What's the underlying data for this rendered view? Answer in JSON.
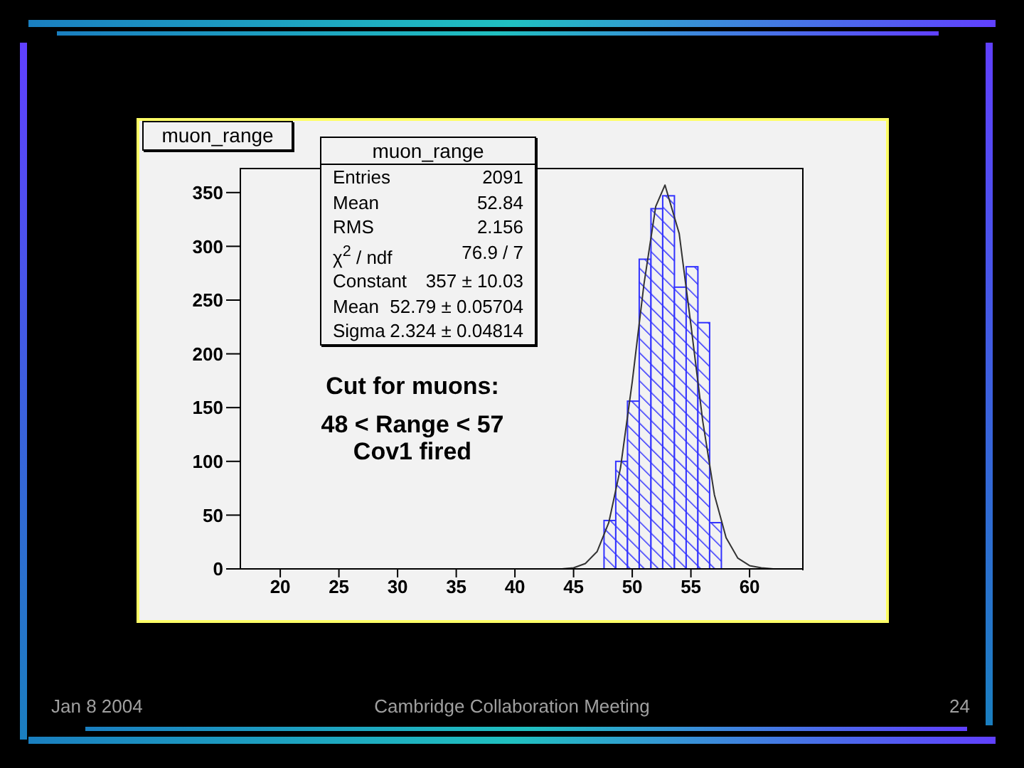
{
  "chart_data": {
    "type": "histogram",
    "title": "muon_range",
    "bins": [
      47.6,
      48.6,
      49.6,
      50.6,
      51.6,
      52.6,
      53.6,
      54.6,
      55.6,
      56.6,
      57.6
    ],
    "values": [
      45,
      100,
      156,
      288,
      335,
      347,
      262,
      281,
      229,
      43
    ],
    "color": "#3333ff",
    "series": [
      {
        "type": "line",
        "color": "#333333",
        "x": [
          43,
          44,
          45,
          46,
          47,
          48,
          49,
          50,
          51,
          52,
          52.79,
          54,
          55,
          56,
          57,
          58,
          59,
          60,
          61,
          62,
          62.5
        ],
        "values": [
          0,
          0,
          1,
          5,
          16,
          43,
          94,
          174,
          265,
          337,
          357,
          312,
          227,
          138,
          69,
          29,
          10,
          3,
          1,
          0,
          0
        ]
      }
    ],
    "xlim": [
      16.6,
      64.6
    ],
    "xticks": [
      20,
      25,
      30,
      35,
      40,
      45,
      50,
      55,
      60
    ],
    "ylim": [
      0,
      373
    ],
    "yticks": [
      0,
      50,
      100,
      150,
      200,
      250,
      300,
      350
    ],
    "grid": false,
    "legend": false,
    "marker": "none",
    "line_style": "solid",
    "annotations": [
      "muon_range",
      "Entries",
      "2091",
      "Mean",
      "52.84",
      "RMS",
      "2.156",
      "χ$^{2}$ / ndf",
      "76.9 / 7",
      "Constant",
      "357 ± 10.03",
      "Mean",
      "52.79 ± 0.05704",
      "Sigma",
      "2.324 ± 0.04814",
      "Cut for muons:",
      "48 < Range < 57",
      "Cov1 fired",
      "Jan 8 2004",
      "Cambridge Collaboration Meeting",
      "24"
    ]
  }
}
